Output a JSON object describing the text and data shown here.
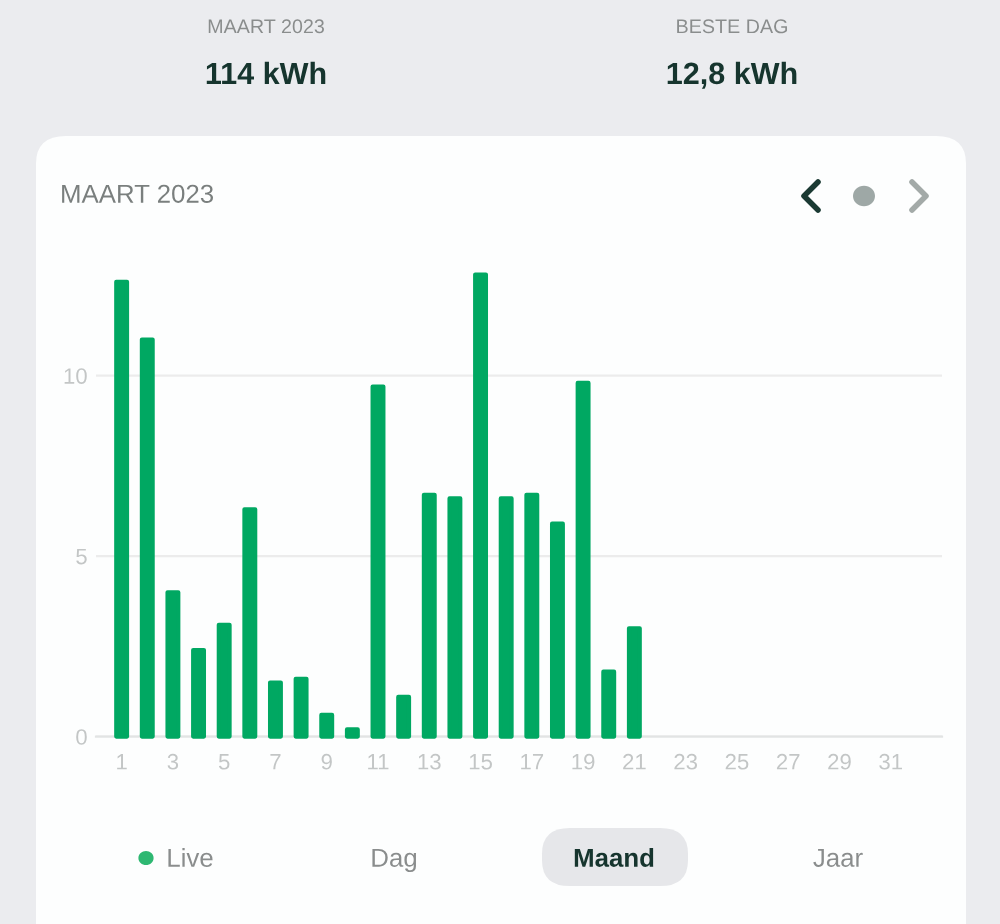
{
  "chart_data": {
    "type": "bar",
    "title": "MAART 2023",
    "categories": [
      "1",
      null,
      "3",
      null,
      "5",
      null,
      "7",
      null,
      "9",
      null,
      "11",
      null,
      "13",
      null,
      "15",
      null,
      "17",
      null,
      "19",
      null,
      "21",
      null,
      "23",
      null,
      "25",
      null,
      "27",
      null,
      "29",
      null,
      "31"
    ],
    "values": [
      12.6,
      11.0,
      4.0,
      2.4,
      3.1,
      6.3,
      1.5,
      1.6,
      0.6,
      0.2,
      9.7,
      1.1,
      6.7,
      6.6,
      12.8,
      6.6,
      6.7,
      5.9,
      9.8,
      1.8,
      3.0,
      null,
      null,
      null,
      null,
      null,
      null,
      null,
      null,
      null,
      null
    ],
    "color": "#00a862",
    "ylim": [
      0,
      12.8
    ],
    "yticks": [
      0,
      5,
      10
    ],
    "grid": "y",
    "annotations": [
      "MAART 2023",
      "114 kWh",
      "BESTE DAG",
      "12,8 kWh",
      "Live",
      "Dag",
      "Maand",
      "Jaar"
    ]
  }
}
